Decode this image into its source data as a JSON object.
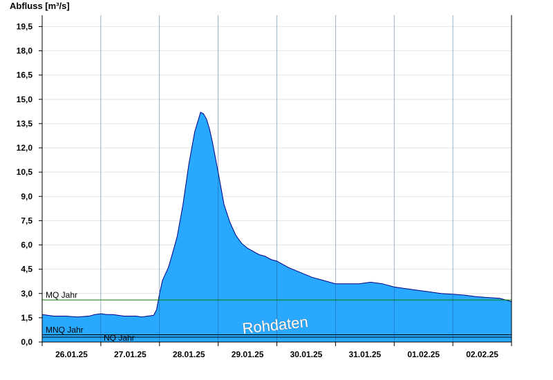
{
  "chart_data": {
    "type": "area",
    "title": "",
    "ylabel": "Abfluss [m³/s]",
    "xlabel": "",
    "ylim": [
      0,
      20.2
    ],
    "y_ticks": [
      0.0,
      1.5,
      3.0,
      4.5,
      6.0,
      7.5,
      9.0,
      10.5,
      12.0,
      13.5,
      15.0,
      16.5,
      18.0,
      19.5
    ],
    "y_tick_labels": [
      "0,0",
      "1,5",
      "3,0",
      "4,5",
      "6,0",
      "7,5",
      "9,0",
      "10,5",
      "12,0",
      "13,5",
      "15,0",
      "16,5",
      "18,0",
      "19,5"
    ],
    "x_labels": [
      "26.01.25",
      "27.01.25",
      "28.01.25",
      "29.01.25",
      "30.01.25",
      "31.01.25",
      "01.02.25",
      "02.02.25"
    ],
    "xlim_days": [
      0,
      8
    ],
    "grid": true,
    "fill_color": "#29a8ff",
    "line_color": "#00008b",
    "series": [
      {
        "name": "",
        "x_days": [
          0,
          0.1,
          0.2,
          0.4,
          0.6,
          0.8,
          0.9,
          1.0,
          1.1,
          1.2,
          1.4,
          1.6,
          1.7,
          1.8,
          1.9,
          1.95,
          2.0,
          2.05,
          2.1,
          2.15,
          2.2,
          2.3,
          2.4,
          2.5,
          2.6,
          2.7,
          2.75,
          2.8,
          2.85,
          2.9,
          3.0,
          3.1,
          3.2,
          3.3,
          3.4,
          3.5,
          3.6,
          3.7,
          3.8,
          3.9,
          4.0,
          4.2,
          4.4,
          4.6,
          4.8,
          5.0,
          5.2,
          5.4,
          5.6,
          5.8,
          6.0,
          6.2,
          6.4,
          6.6,
          6.8,
          7.0,
          7.2,
          7.4,
          7.6,
          7.8,
          8.0
        ],
        "values": [
          1.7,
          1.65,
          1.6,
          1.6,
          1.55,
          1.6,
          1.7,
          1.75,
          1.7,
          1.7,
          1.6,
          1.6,
          1.55,
          1.6,
          1.65,
          2.0,
          3.0,
          3.8,
          4.2,
          4.6,
          5.2,
          6.5,
          8.5,
          11.0,
          13.0,
          14.2,
          14.1,
          13.8,
          13.2,
          12.4,
          10.5,
          8.5,
          7.4,
          6.6,
          6.1,
          5.8,
          5.6,
          5.4,
          5.3,
          5.1,
          5.0,
          4.6,
          4.3,
          4.0,
          3.8,
          3.6,
          3.6,
          3.6,
          3.7,
          3.6,
          3.4,
          3.3,
          3.2,
          3.1,
          3.0,
          2.95,
          2.9,
          2.8,
          2.75,
          2.7,
          2.5
        ]
      }
    ],
    "reference_lines": [
      {
        "label": "MQ Jahr",
        "value": 2.6,
        "color": "#008000"
      },
      {
        "label": "MNQ Jahr",
        "value": 0.45,
        "color": "#000000"
      },
      {
        "label": "NQ Jahr",
        "value": 0.3,
        "color": "#000000"
      }
    ],
    "watermark": "Rohdaten"
  }
}
